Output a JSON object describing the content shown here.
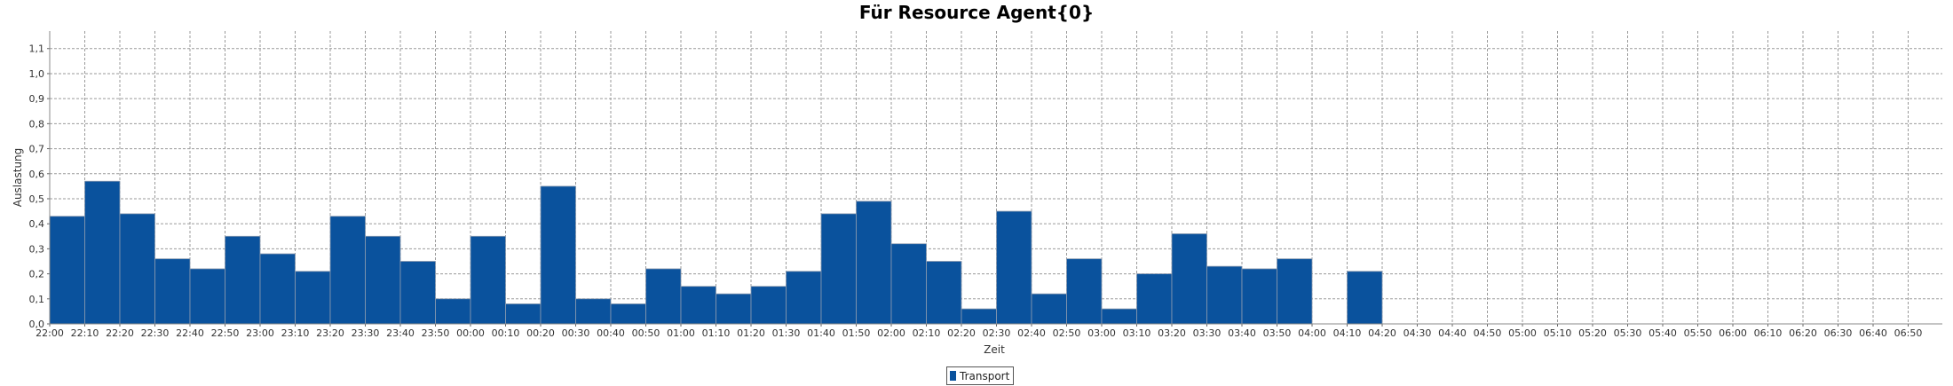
{
  "chart_data": {
    "type": "bar",
    "title": "Für Resource Agent{0}",
    "xlabel": "Zeit",
    "ylabel": "Auslastung",
    "ylim": [
      0,
      1.17
    ],
    "yticks": [
      "0,0",
      "0,1",
      "0,2",
      "0,3",
      "0,4",
      "0,5",
      "0,6",
      "0,7",
      "0,8",
      "0,9",
      "1,0",
      "1,1"
    ],
    "grid": true,
    "legend_position": "bottom-center",
    "categories": [
      "22:00",
      "22:10",
      "22:20",
      "22:30",
      "22:40",
      "22:50",
      "23:00",
      "23:10",
      "23:20",
      "23:30",
      "23:40",
      "23:50",
      "00:00",
      "00:10",
      "00:20",
      "00:30",
      "00:40",
      "00:50",
      "01:00",
      "01:10",
      "01:20",
      "01:30",
      "01:40",
      "01:50",
      "02:00",
      "02:10",
      "02:20",
      "02:30",
      "02:40",
      "02:50",
      "03:00",
      "03:10",
      "03:20",
      "03:30",
      "03:40",
      "03:50",
      "04:00",
      "04:10",
      "04:20",
      "04:30",
      "04:40",
      "04:50",
      "05:00",
      "05:10",
      "05:20",
      "05:30",
      "05:40",
      "05:50",
      "06:00",
      "06:10",
      "06:20",
      "06:30",
      "06:40",
      "06:50"
    ],
    "series": [
      {
        "name": "Transport",
        "color": "#0a529d",
        "values": [
          0.43,
          0.57,
          0.44,
          0.26,
          0.22,
          0.35,
          0.28,
          0.21,
          0.43,
          0.35,
          0.25,
          0.1,
          0.35,
          0.08,
          0.55,
          0.1,
          0.08,
          0.22,
          0.15,
          0.12,
          0.15,
          0.21,
          0.44,
          0.49,
          0.32,
          0.25,
          0.06,
          0.45,
          0.12,
          0.26,
          0.06,
          0.2,
          0.36,
          0.23,
          0.22,
          0.26,
          null,
          0.21,
          null,
          null,
          null,
          null,
          null,
          null,
          null,
          null,
          null,
          null,
          null,
          null,
          null,
          null,
          null,
          null
        ]
      }
    ]
  }
}
